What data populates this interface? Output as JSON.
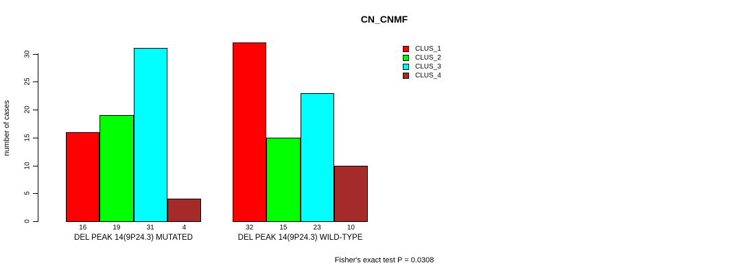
{
  "title": "CN_CNMF",
  "y_axis": {
    "label": "number of cases",
    "ticks": [
      0,
      5,
      10,
      15,
      20,
      25,
      30
    ]
  },
  "footer": "Fisher's exact test P = 0.0308",
  "legend": {
    "items": [
      {
        "label": "CLUS_1",
        "color": "#ff0000"
      },
      {
        "label": "CLUS_2",
        "color": "#00ff00"
      },
      {
        "label": "CLUS_3",
        "color": "#00ffff"
      },
      {
        "label": "CLUS_4",
        "color": "#a52a2a"
      }
    ]
  },
  "chart_data": {
    "type": "bar",
    "title": "CN_CNMF",
    "ylabel": "number of cases",
    "xlabel": "",
    "categories": [
      "DEL PEAK 14(9P24.3) MUTATED",
      "DEL PEAK 14(9P24.3) WILD-TYPE"
    ],
    "series": [
      {
        "name": "CLUS_1",
        "color": "#ff0000",
        "values": [
          16,
          32
        ]
      },
      {
        "name": "CLUS_2",
        "color": "#00ff00",
        "values": [
          19,
          15
        ]
      },
      {
        "name": "CLUS_3",
        "color": "#00ffff",
        "values": [
          31,
          23
        ]
      },
      {
        "name": "CLUS_4",
        "color": "#a52a2a",
        "values": [
          4,
          10
        ]
      }
    ],
    "bar_value_labels": [
      [
        16,
        19,
        31,
        4
      ],
      [
        32,
        15,
        23,
        10
      ]
    ],
    "yticks": [
      0,
      5,
      10,
      15,
      20,
      25,
      30
    ],
    "ylim": [
      0,
      32
    ],
    "grid": false,
    "legend_position": "top-right",
    "annotation": "Fisher's exact test P = 0.0308"
  }
}
